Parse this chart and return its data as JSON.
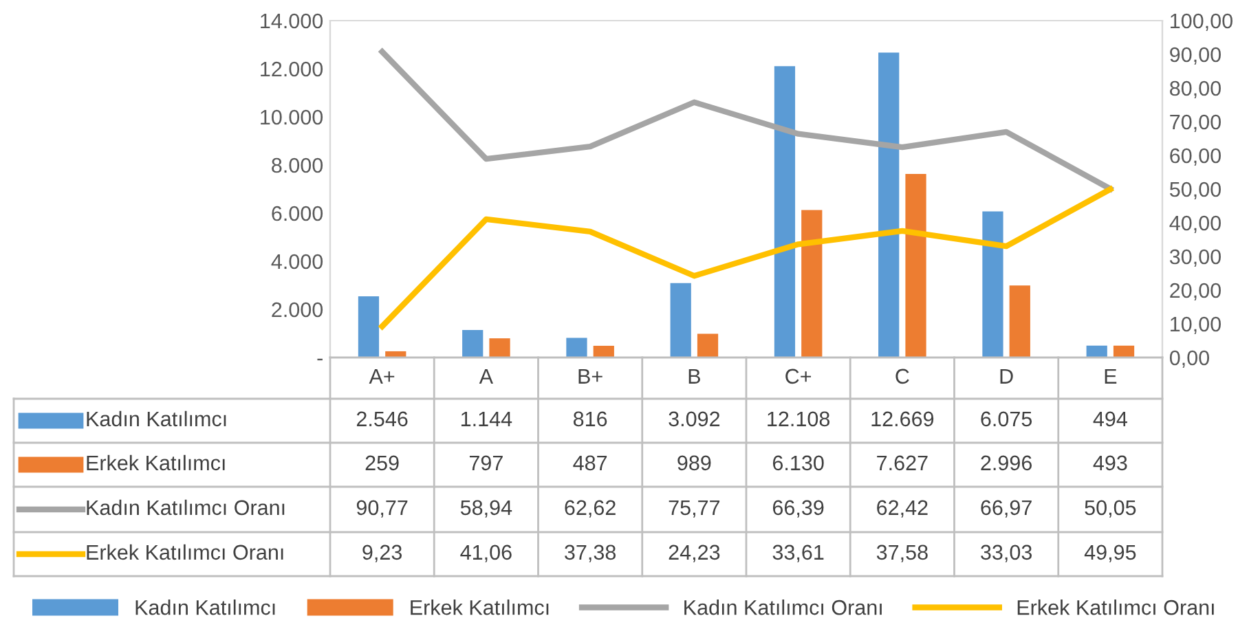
{
  "chart_data": {
    "type": "bar",
    "categories": [
      "A+",
      "A",
      "B+",
      "B",
      "C+",
      "C",
      "D",
      "E"
    ],
    "series": [
      {
        "name": "Kadın Katılımcı",
        "color": "#5b9bd5",
        "values": [
          2546,
          1144,
          816,
          3092,
          12108,
          12669,
          6075,
          494
        ],
        "value_labels": [
          "2.546",
          "1.144",
          "816",
          "3.092",
          "12.108",
          "12.669",
          "6.075",
          "494"
        ]
      },
      {
        "name": "Erkek Katılımcı",
        "color": "#ed7d31",
        "values": [
          259,
          797,
          487,
          989,
          6130,
          7627,
          2996,
          493
        ],
        "value_labels": [
          "259",
          "797",
          "487",
          "989",
          "6.130",
          "7.627",
          "2.996",
          "493"
        ]
      },
      {
        "name": "Kadın Katılımcı Oranı",
        "type": "line",
        "axis": "y2",
        "color": "#a5a5a5",
        "values": [
          90.77,
          58.94,
          62.62,
          75.77,
          66.39,
          62.42,
          66.97,
          50.05
        ],
        "value_labels": [
          "90,77",
          "58,94",
          "62,62",
          "75,77",
          "66,39",
          "62,42",
          "66,97",
          "50,05"
        ]
      },
      {
        "name": "Erkek Katılımcı Oranı",
        "type": "line",
        "axis": "y2",
        "color": "#ffc000",
        "values": [
          9.23,
          41.06,
          37.38,
          24.23,
          33.61,
          37.58,
          33.03,
          49.95
        ],
        "value_labels": [
          "9,23",
          "41,06",
          "37,38",
          "24,23",
          "33,61",
          "37,58",
          "33,03",
          "49,95"
        ]
      }
    ],
    "ylim": [
      0,
      14000
    ],
    "yticks": [
      {
        "value": 0,
        "label": "-"
      },
      {
        "value": 2000,
        "label": "2.000"
      },
      {
        "value": 4000,
        "label": "4.000"
      },
      {
        "value": 6000,
        "label": "6.000"
      },
      {
        "value": 8000,
        "label": "8.000"
      },
      {
        "value": 10000,
        "label": "10.000"
      },
      {
        "value": 12000,
        "label": "12.000"
      },
      {
        "value": 14000,
        "label": "14.000"
      }
    ],
    "y2lim": [
      0,
      100
    ],
    "y2ticks": [
      {
        "value": 0,
        "label": "0,00"
      },
      {
        "value": 10,
        "label": "10,00"
      },
      {
        "value": 20,
        "label": "20,00"
      },
      {
        "value": 30,
        "label": "30,00"
      },
      {
        "value": 40,
        "label": "40,00"
      },
      {
        "value": 50,
        "label": "50,00"
      },
      {
        "value": 60,
        "label": "60,00"
      },
      {
        "value": 70,
        "label": "70,00"
      },
      {
        "value": 80,
        "label": "80,00"
      },
      {
        "value": 90,
        "label": "90,00"
      },
      {
        "value": 100,
        "label": "100,00"
      }
    ],
    "grid": false,
    "legend": "bottom"
  }
}
